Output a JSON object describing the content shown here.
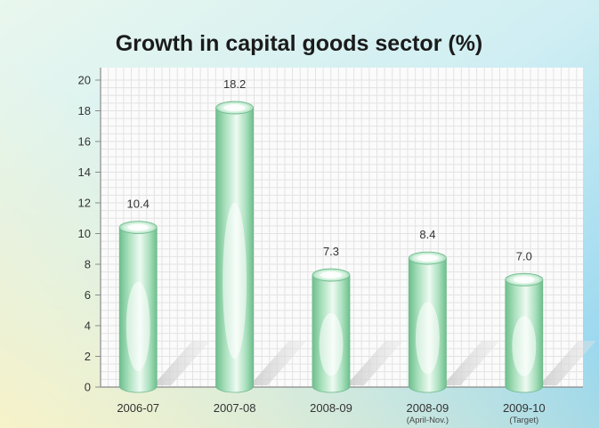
{
  "chart_data": {
    "type": "bar",
    "title": "Growth in capital goods sector (%)",
    "categories": [
      "2006-07",
      "2007-08",
      "2008-09",
      "2008-09",
      "2009-10"
    ],
    "category_sublabels": [
      "",
      "",
      "",
      "(April-Nov.)",
      "(Target)"
    ],
    "values": [
      10.4,
      18.2,
      7.3,
      8.4,
      7.0
    ],
    "value_labels": [
      "10.4",
      "18.2",
      "7.3",
      "8.4",
      "7.0"
    ],
    "ylim": [
      0,
      20
    ],
    "yticks": [
      0,
      2,
      4,
      6,
      8,
      10,
      12,
      14,
      16,
      18,
      20
    ],
    "grid": true,
    "xlabel": "",
    "ylabel": ""
  },
  "colors": {
    "bar_main": "#8fd4a8",
    "bar_highlight": "#ffffff",
    "bar_dark": "#5fb07f",
    "title": "#1b1b1b",
    "plot_bg": "#fbfbfb",
    "grid": "#dedede"
  }
}
